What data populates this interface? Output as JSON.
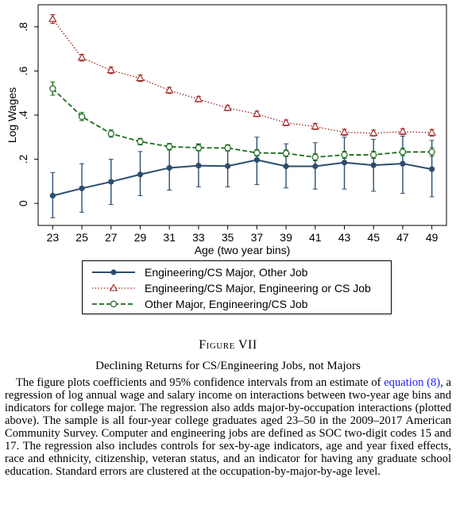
{
  "chart_data": {
    "type": "line",
    "xlabel": "Age (two year bins)",
    "ylabel": "Log Wages",
    "x": [
      23,
      25,
      27,
      29,
      31,
      33,
      35,
      37,
      39,
      41,
      43,
      45,
      47,
      49
    ],
    "xticks": [
      "23",
      "25",
      "27",
      "29",
      "31",
      "33",
      "35",
      "37",
      "39",
      "41",
      "43",
      "45",
      "47",
      "49"
    ],
    "yticks": [
      "0",
      ".2",
      ".4",
      ".6",
      ".8"
    ],
    "ytick_values": [
      0,
      0.2,
      0.4,
      0.6,
      0.8
    ],
    "ylim": [
      -0.1,
      0.9
    ],
    "xlim": [
      22,
      50
    ],
    "grid": false,
    "legend_position": "bottom",
    "series": [
      {
        "name": "Engineering/CS Major, Other Job",
        "color": "#2b4d6e",
        "line_style": "solid",
        "marker": "filled-circle",
        "values": [
          0.035,
          0.068,
          0.098,
          0.131,
          0.161,
          0.171,
          0.169,
          0.197,
          0.168,
          0.168,
          0.185,
          0.173,
          0.18,
          0.155
        ],
        "ci_low": [
          -0.065,
          -0.04,
          -0.005,
          0.035,
          0.06,
          0.075,
          0.075,
          0.085,
          0.07,
          0.065,
          0.065,
          0.055,
          0.045,
          0.03
        ],
        "ci_high": [
          0.14,
          0.18,
          0.2,
          0.235,
          0.26,
          0.27,
          0.265,
          0.3,
          0.27,
          0.275,
          0.3,
          0.29,
          0.305,
          0.285
        ]
      },
      {
        "name": "Engineering/CS Major, Engineering or CS Job",
        "color": "#a02020",
        "line_style": "dotted",
        "marker": "hollow-triangle",
        "values": [
          0.835,
          0.66,
          0.603,
          0.567,
          0.512,
          0.472,
          0.432,
          0.405,
          0.365,
          0.348,
          0.322,
          0.318,
          0.325,
          0.32
        ],
        "ci_low": [
          0.815,
          0.645,
          0.588,
          0.552,
          0.498,
          0.46,
          0.42,
          0.393,
          0.352,
          0.335,
          0.308,
          0.305,
          0.312,
          0.305
        ],
        "ci_high": [
          0.855,
          0.675,
          0.618,
          0.582,
          0.526,
          0.484,
          0.444,
          0.418,
          0.378,
          0.362,
          0.336,
          0.332,
          0.338,
          0.335
        ]
      },
      {
        "name": "Other Major, Engineering/CS Job",
        "color": "#1a6b1a",
        "line_style": "dashed",
        "marker": "hollow-circle",
        "values": [
          0.52,
          0.393,
          0.316,
          0.28,
          0.257,
          0.252,
          0.251,
          0.229,
          0.227,
          0.209,
          0.22,
          0.22,
          0.233,
          0.233
        ],
        "ci_low": [
          0.49,
          0.375,
          0.3,
          0.265,
          0.242,
          0.238,
          0.237,
          0.214,
          0.212,
          0.193,
          0.204,
          0.204,
          0.216,
          0.214
        ],
        "ci_high": [
          0.55,
          0.412,
          0.333,
          0.295,
          0.272,
          0.267,
          0.266,
          0.244,
          0.242,
          0.225,
          0.236,
          0.236,
          0.25,
          0.252
        ]
      }
    ]
  },
  "figure": {
    "label": "Figure VII",
    "title": "Declining Returns for CS/Engineering Jobs, not Majors",
    "caption_pre": "The figure plots coefficients and 95% confidence intervals from an estimate of ",
    "caption_link": "equation (8)",
    "caption_post": ", a regression of log annual wage and salary income on interactions between two-year age bins and indicators for college major. The regression also adds major-by-occupation interactions (plotted above). The sample is all four-year college graduates aged 23–50 in the 2009–2017 American Community Survey. Computer and engineering jobs are defined as SOC two-digit codes 15 and 17. The regression also includes controls for sex-by-age indicators, age and year fixed effects, race and ethnicity, citizenship, veteran status, and an indicator for having any graduate school education. Standard errors are clustered at the occupation-by-major-by-age level."
  }
}
